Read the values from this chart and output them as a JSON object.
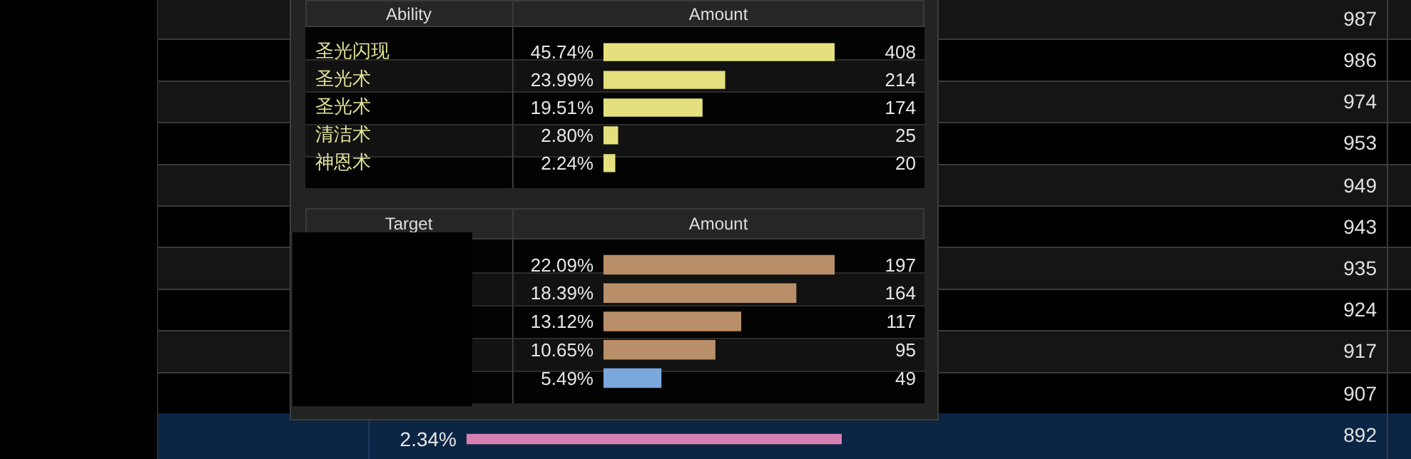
{
  "chart_data": [
    {
      "type": "bar",
      "orientation": "horizontal",
      "ylabel": "Ability",
      "xlabel": "Amount",
      "categories": [
        "圣光闪现",
        "圣光术",
        "圣光术",
        "清洁术",
        "神恩术"
      ],
      "values": [
        408,
        214,
        174,
        25,
        20
      ],
      "color": "#e5e07e",
      "data_labels": true,
      "annotations": [
        "45.74%",
        "23.99%",
        "19.51%",
        "2.80%",
        "2.24%"
      ]
    },
    {
      "type": "bar",
      "orientation": "horizontal",
      "ylabel": "Target",
      "xlabel": "Amount",
      "categories": [
        null,
        null,
        null,
        null,
        null
      ],
      "values": [
        197,
        164,
        117,
        95,
        49
      ],
      "colors": [
        "#b88f69",
        "#b88f69",
        "#b88f69",
        "#b88f69",
        "#7aa7dc"
      ],
      "data_labels": true,
      "annotations": [
        "22.09%",
        "18.39%",
        "13.12%",
        "10.65%",
        "5.49%"
      ]
    },
    {
      "type": "other",
      "annotations": [
        "987",
        "986",
        "974",
        "953",
        "949",
        "943",
        "935",
        "924",
        "917",
        "907",
        "892"
      ]
    },
    {
      "type": "bar",
      "orientation": "horizontal",
      "categories": [
        null
      ],
      "values": [
        2.34
      ],
      "color": "#d680b1",
      "value_labels": [
        "2.34%"
      ]
    }
  ]
}
